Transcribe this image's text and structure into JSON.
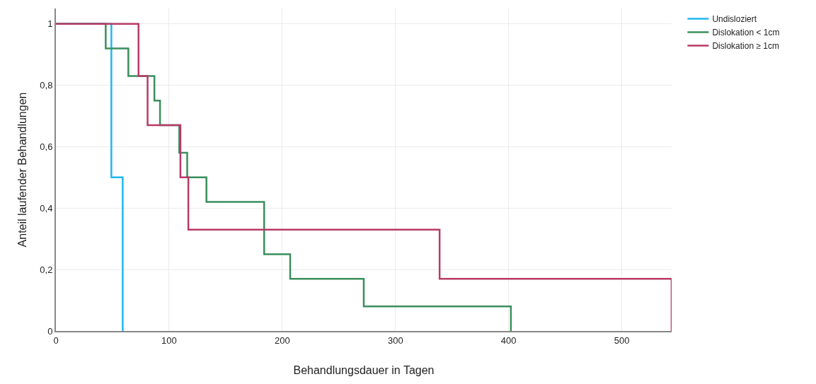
{
  "chart_data": {
    "type": "step",
    "xlabel": "Behandlungsdauer in Tagen",
    "ylabel": "Anteil laufender Behandlungen",
    "series": [
      {
        "name": "Undisloziert",
        "color": "#1fb8f0",
        "x": [
          0,
          49,
          59
        ],
        "values": [
          1,
          0.5,
          0
        ]
      },
      {
        "name": "Dislokation < 1cm",
        "color": "#3a8f5c",
        "x": [
          0,
          44,
          64,
          87,
          92,
          109,
          116,
          133,
          184,
          207,
          272,
          402
        ],
        "values": [
          1,
          0.92,
          0.83,
          0.75,
          0.67,
          0.58,
          0.5,
          0.42,
          0.25,
          0.17,
          0.08,
          0
        ]
      },
      {
        "name": "Dislokation ≥ 1cm",
        "color": "#b83a67",
        "x": [
          0,
          73,
          81,
          110,
          117,
          339,
          544
        ],
        "values": [
          1,
          0.83,
          0.67,
          0.5,
          0.33,
          0.17,
          0
        ]
      }
    ],
    "xlim": [
      0,
      544
    ],
    "xticks": [
      0,
      100,
      200,
      300,
      400,
      500
    ],
    "ylim": [
      0,
      1.05
    ],
    "yticks": [
      0,
      {
        "value": 0.2,
        "label": "0,2"
      },
      {
        "value": 0.4,
        "label": "0,4"
      },
      {
        "value": 0.6,
        "label": "0,6"
      },
      {
        "value": 0.8,
        "label": "0,8"
      },
      1
    ],
    "grid": true,
    "legend": "top right",
    "marker": "none",
    "line_style": "solid"
  }
}
